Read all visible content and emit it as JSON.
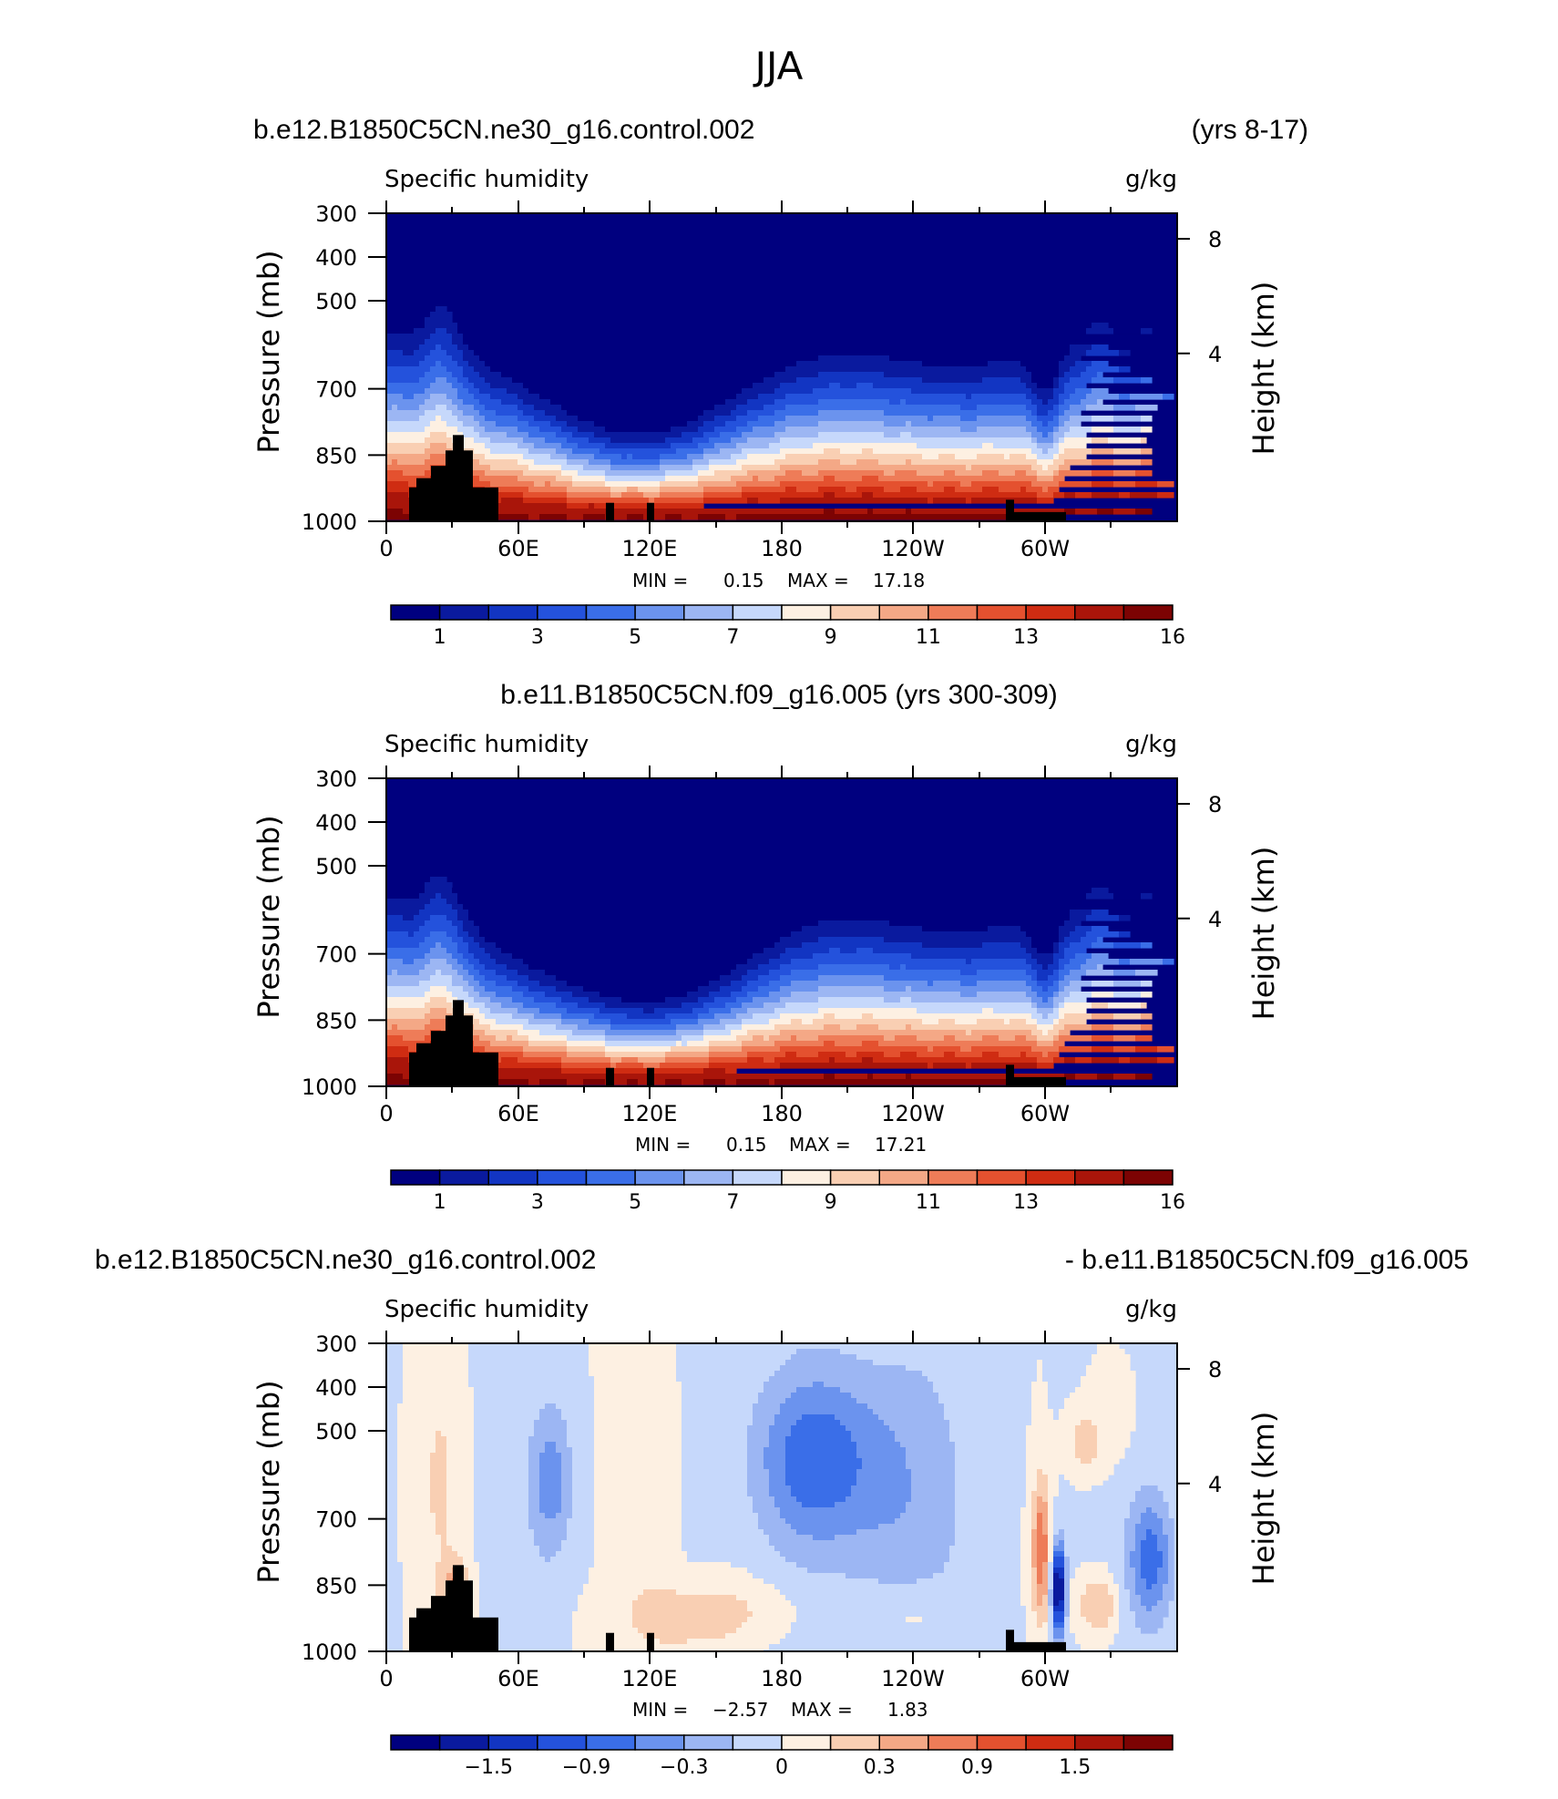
{
  "figure_title": "JJA",
  "colors": {
    "q_palette": [
      "#00007f",
      "#0a1a9e",
      "#1235c2",
      "#2452dc",
      "#3a6ee8",
      "#6b93ee",
      "#9cb6f3",
      "#c6d8fb",
      "#fdf0e2",
      "#f9cfb3",
      "#f4a886",
      "#ee7c58",
      "#e4512f",
      "#cf2c12",
      "#a9150a",
      "#7c0303"
    ],
    "diff_palette": [
      "#00007f",
      "#0a1a9e",
      "#1235c2",
      "#2452dc",
      "#3a6ee8",
      "#6b93ee",
      "#9cb6f3",
      "#c6d8fb",
      "#fdf0e2",
      "#f9cfb3",
      "#f4a886",
      "#ee7c58",
      "#e4512f",
      "#cf2c12",
      "#a9150a",
      "#7c0303"
    ],
    "topography": "#000000"
  },
  "chart_data": [
    {
      "type": "heatmap",
      "title_left": "b.e12.B1850C5CN.ne30_g16.control.002",
      "title_right": "(yrs 8-17)",
      "variable": "Specific humidity",
      "units": "g/kg",
      "ylabel": "Pressure (mb)",
      "ylabel_right": "Height (km)",
      "x_ticks": [
        "0",
        "60E",
        "120E",
        "180",
        "120W",
        "60W"
      ],
      "y_ticks": [
        "300",
        "400",
        "500",
        "700",
        "850",
        "1000"
      ],
      "y_ticks_right": [
        "8",
        "4"
      ],
      "min_label": "MIN =",
      "min_value": "0.15",
      "max_label": "MAX =",
      "max_value": "17.18",
      "colorbar_labels": [
        "1",
        "3",
        "5",
        "7",
        "9",
        "11",
        "13",
        "16"
      ]
    },
    {
      "type": "heatmap",
      "title_left": "b.e11.B1850C5CN.f09_g16.005 (yrs 300-309)",
      "title_right": "",
      "variable": "Specific humidity",
      "units": "g/kg",
      "ylabel": "Pressure (mb)",
      "ylabel_right": "Height (km)",
      "x_ticks": [
        "0",
        "60E",
        "120E",
        "180",
        "120W",
        "60W"
      ],
      "y_ticks": [
        "300",
        "400",
        "500",
        "700",
        "850",
        "1000"
      ],
      "y_ticks_right": [
        "8",
        "4"
      ],
      "min_label": "MIN =",
      "min_value": "0.15",
      "max_label": "MAX =",
      "max_value": "17.21",
      "colorbar_labels": [
        "1",
        "3",
        "5",
        "7",
        "9",
        "11",
        "13",
        "16"
      ]
    },
    {
      "type": "heatmap",
      "title_left": "b.e12.B1850C5CN.ne30_g16.control.002",
      "title_right": "- b.e11.B1850C5CN.f09_g16.005",
      "variable": "Specific humidity",
      "units": "g/kg",
      "ylabel": "Pressure (mb)",
      "ylabel_right": "Height (km)",
      "x_ticks": [
        "0",
        "60E",
        "120E",
        "180",
        "120W",
        "60W"
      ],
      "y_ticks": [
        "300",
        "400",
        "500",
        "700",
        "850",
        "1000"
      ],
      "y_ticks_right": [
        "8",
        "4"
      ],
      "min_label": "MIN =",
      "min_value": "−2.57",
      "max_label": "MAX =",
      "max_value": "1.83",
      "colorbar_labels": [
        "−1.5",
        "−0.9",
        "−0.3",
        "0",
        "0.3",
        "0.9",
        "1.5"
      ]
    }
  ]
}
